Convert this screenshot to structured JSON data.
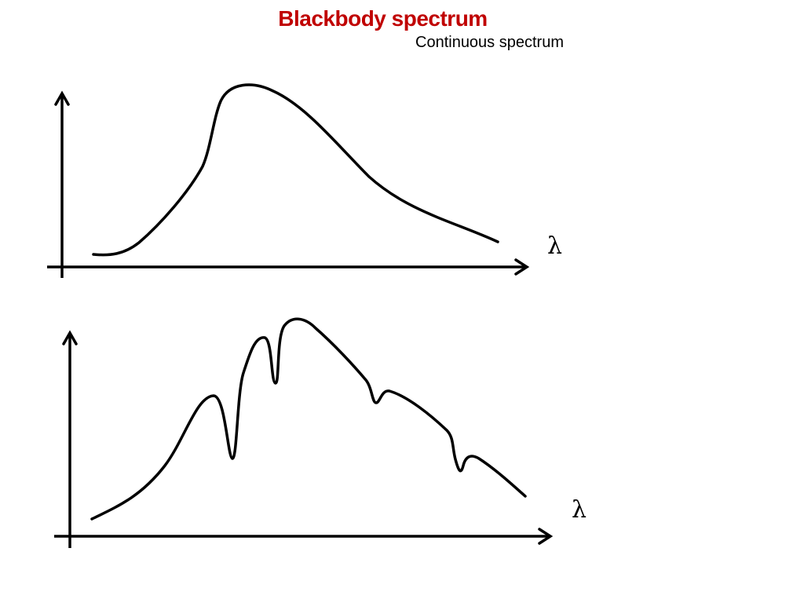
{
  "slide": {
    "title": "Blackbody spectrum",
    "subtitle": "Continuous spectrum"
  },
  "colors": {
    "title": "#c00000",
    "text": "#000000",
    "stroke": "#000000"
  },
  "plots": [
    {
      "name": "continuous-spectrum",
      "x_axis_symbol": "λ"
    },
    {
      "name": "absorption-spectrum",
      "x_axis_symbol": "λ"
    }
  ]
}
